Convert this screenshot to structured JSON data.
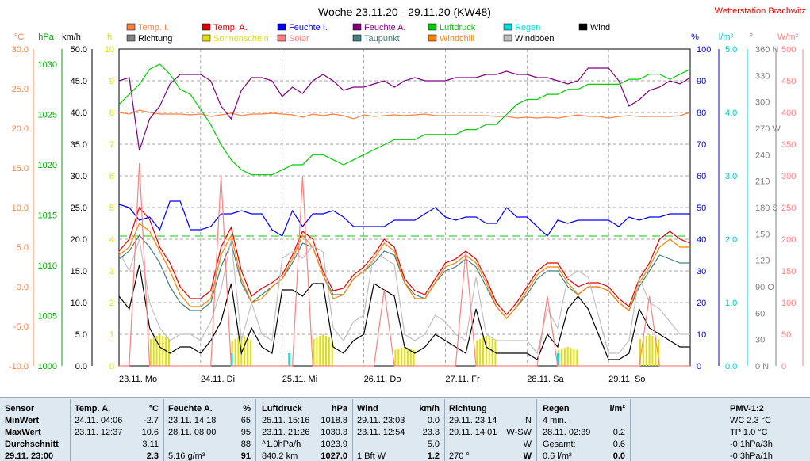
{
  "header": {
    "title": "Woche 23.11.20 - 29.11.20 (KW48)",
    "station": "Wetterstation Brachwitz"
  },
  "legend": [
    {
      "label": "Temp. I.",
      "color": "#ff8040"
    },
    {
      "label": "Temp. A.",
      "color": "#e00000"
    },
    {
      "label": "Feuchte I.",
      "color": "#0000ff"
    },
    {
      "label": "Feuchte A.",
      "color": "#800080"
    },
    {
      "label": "Luftdruck",
      "color": "#00cc00"
    },
    {
      "label": "Regen",
      "color": "#00e0e0"
    },
    {
      "label": "Wind",
      "color": "#000000"
    },
    {
      "label": "Richtung",
      "color": "#808080"
    },
    {
      "label": "Sonnenschein",
      "color": "#e0e000"
    },
    {
      "label": "Solar",
      "color": "#ff8080"
    },
    {
      "label": "Taupunkt",
      "color": "#408080"
    },
    {
      "label": "Windchill",
      "color": "#ff8000"
    },
    {
      "label": "Windböen",
      "color": "#c0c0c0"
    }
  ],
  "axes": {
    "temp": {
      "unit": "°C",
      "color": "#ff8040",
      "ticks": [
        "30.0",
        "25.0",
        "20.0",
        "15.0",
        "10.0",
        "5.0",
        "0.0",
        "-5.0",
        "-10.0"
      ]
    },
    "pressure": {
      "unit": "hPa",
      "color": "#00aa00",
      "ticks": [
        "1030",
        "1025",
        "1020",
        "1015",
        "1010",
        "1005",
        "1000"
      ]
    },
    "wind": {
      "unit": "km/h",
      "color": "#000000",
      "ticks": [
        "50.0",
        "45.0",
        "40.0",
        "35.0",
        "30.0",
        "25.0",
        "20.0",
        "15.0",
        "10.0",
        "5.0",
        "0.0"
      ]
    },
    "sun": {
      "unit": "h",
      "color": "#e0e000",
      "ticks": [
        "10",
        "9",
        "8",
        "7",
        "6",
        "5",
        "4",
        "3",
        "2",
        "1",
        "0"
      ]
    },
    "humidity": {
      "unit": "%",
      "color": "#0000ff",
      "ticks": [
        "100",
        "90",
        "80",
        "70",
        "60",
        "50",
        "40",
        "30",
        "20",
        "10",
        "0"
      ]
    },
    "rain": {
      "unit": "l/m²",
      "color": "#00cccc",
      "ticks": [
        "5.0",
        "4.0",
        "3.0",
        "2.0",
        "1.0",
        "0.0"
      ]
    },
    "direction": {
      "unit": "°",
      "color": "#808080",
      "ticks": [
        "360 N",
        "330",
        "300",
        "270 W",
        "240",
        "210",
        "180 S",
        "150",
        "120",
        "90 O",
        "60",
        "30",
        "0 N"
      ]
    },
    "solar": {
      "unit": "W/m²",
      "color": "#ff8080",
      "ticks": [
        "500",
        "450",
        "400",
        "350",
        "300",
        "250",
        "200",
        "150",
        "100",
        "50",
        "0"
      ]
    },
    "days": [
      "23.11. Mo",
      "24.11. Di",
      "25.11. Mi",
      "26.11. Do",
      "27.11. Fr",
      "28.11. Sa",
      "29.11. So"
    ]
  },
  "chart_data": {
    "type": "line",
    "title": "Woche 23.11.20 - 29.11.20 (KW48)",
    "x": [
      0,
      3,
      6,
      9,
      12,
      15,
      18,
      21,
      24,
      27,
      30,
      33,
      36,
      39,
      42,
      45,
      48,
      51,
      54,
      57,
      60,
      63,
      66,
      69,
      72,
      75,
      78,
      81,
      84,
      87,
      90,
      93,
      96,
      99,
      102,
      105,
      108,
      111,
      114,
      117,
      120,
      123,
      126,
      129,
      132,
      135,
      138,
      141,
      144,
      147,
      150,
      153,
      156,
      159,
      162,
      165,
      168
    ],
    "x_unit": "hours since 23.11. 00:00",
    "series": [
      {
        "name": "Temp. I.",
        "axis": "temp",
        "color": "#ff8040",
        "values": [
          22.0,
          21.8,
          22.3,
          22.0,
          21.8,
          21.8,
          21.8,
          21.7,
          21.8,
          21.5,
          21.7,
          21.9,
          21.6,
          21.8,
          21.8,
          21.9,
          21.8,
          21.7,
          21.4,
          21.8,
          21.6,
          21.8,
          21.6,
          21.2,
          21.7,
          21.5,
          21.6,
          21.7,
          21.6,
          21.7,
          21.8,
          21.6,
          21.6,
          21.6,
          21.6,
          21.6,
          21.6,
          21.5,
          21.5,
          21.3,
          21.4,
          21.3,
          21.4,
          21.3,
          21.5,
          21.7,
          21.5,
          21.5,
          21.3,
          21.5,
          21.6,
          21.5,
          21.5,
          21.5,
          21.5,
          21.6,
          22.0
        ]
      },
      {
        "name": "Temp. A.",
        "axis": "temp",
        "color": "#e00000",
        "values": [
          4.5,
          6.0,
          10.0,
          8.5,
          5.0,
          3.0,
          0.0,
          -1.5,
          -1.5,
          -0.5,
          5.0,
          7.5,
          2.0,
          -1.2,
          -0.2,
          0.5,
          1.5,
          4.0,
          7.0,
          6.0,
          2.0,
          -0.5,
          -0.2,
          1.5,
          2.5,
          4.0,
          6.0,
          5.0,
          1.0,
          -0.5,
          -1.0,
          1.0,
          3.0,
          3.5,
          4.5,
          3.5,
          1.0,
          -2.0,
          -3.5,
          -2.0,
          0.0,
          2.0,
          3.0,
          3.0,
          1.0,
          0.0,
          0.5,
          0.5,
          0.0,
          -1.5,
          -2.5,
          1.0,
          3.0,
          6.0,
          7.0,
          6.0,
          5.5
        ]
      },
      {
        "name": "Feuchte I.",
        "axis": "humidity",
        "color": "#0000ff",
        "values": [
          51,
          50,
          46,
          47,
          43,
          52,
          52,
          43,
          43,
          44,
          48,
          48,
          49,
          48,
          48,
          43,
          41,
          49,
          44,
          48,
          48,
          49,
          47,
          44,
          44,
          44,
          44,
          46,
          46,
          46,
          48,
          50,
          47,
          46,
          47,
          47,
          45,
          45,
          50,
          47,
          47,
          44,
          41,
          46,
          45,
          46,
          46,
          46,
          46,
          44,
          47,
          46,
          47,
          47,
          48,
          48,
          48
        ]
      },
      {
        "name": "Feuchte A.",
        "axis": "humidity",
        "color": "#800080",
        "values": [
          90,
          91,
          68,
          78,
          82,
          89,
          92,
          92,
          92,
          90,
          82,
          78,
          87,
          91,
          91,
          90,
          85,
          88,
          86,
          90,
          92,
          90,
          87,
          88,
          88,
          89,
          90,
          88,
          90,
          91,
          90,
          90,
          90,
          91,
          91,
          91,
          92,
          92,
          93,
          92,
          92,
          91,
          91,
          90,
          89,
          90,
          94,
          94,
          94,
          90,
          82,
          84,
          87,
          88,
          90,
          89,
          91
        ]
      },
      {
        "name": "Luftdruck",
        "axis": "pressure",
        "color": "#00cc00",
        "values": [
          1026.0,
          1027.0,
          1028.0,
          1029.5,
          1030.0,
          1029.0,
          1027.5,
          1027.0,
          1025.5,
          1024.0,
          1022.0,
          1020.5,
          1019.5,
          1019.0,
          1019.0,
          1019.0,
          1019.5,
          1020.0,
          1020.0,
          1021.0,
          1021.0,
          1020.5,
          1020.0,
          1020.5,
          1021.0,
          1021.5,
          1022.0,
          1022.5,
          1022.5,
          1022.5,
          1023.0,
          1023.0,
          1023.0,
          1023.0,
          1023.5,
          1023.5,
          1024.0,
          1024.0,
          1025.0,
          1026.0,
          1026.5,
          1026.5,
          1027.0,
          1027.0,
          1027.5,
          1027.5,
          1028.0,
          1028.0,
          1028.0,
          1028.0,
          1028.5,
          1028.5,
          1029.0,
          1029.0,
          1028.5,
          1029.0,
          1029.5
        ]
      },
      {
        "name": "Taupunkt",
        "axis": "temp",
        "color": "#408080",
        "values": [
          3.5,
          4.5,
          6.5,
          5.0,
          3.0,
          0.0,
          -2.0,
          -3.0,
          -3.0,
          -2.0,
          2.5,
          5.5,
          0.5,
          -2.0,
          -1.0,
          0.0,
          1.0,
          3.0,
          5.5,
          5.0,
          1.5,
          -1.0,
          -1.0,
          1.0,
          2.0,
          3.0,
          4.5,
          4.0,
          0.5,
          -1.0,
          -1.5,
          0.5,
          2.0,
          2.5,
          3.5,
          2.5,
          0.0,
          -2.5,
          -4.0,
          -2.5,
          -1.0,
          1.0,
          2.0,
          2.0,
          0.0,
          -1.0,
          0.0,
          0.0,
          -0.5,
          -2.0,
          -3.0,
          0.0,
          2.0,
          4.0,
          3.5,
          3.0,
          3.0
        ]
      },
      {
        "name": "Windchill",
        "axis": "temp",
        "color": "#ff8000",
        "values": [
          4.0,
          5.0,
          8.0,
          7.0,
          4.5,
          2.0,
          -1.0,
          -2.5,
          -2.5,
          -1.5,
          4.0,
          6.5,
          1.0,
          -2.0,
          -1.5,
          0.0,
          1.0,
          3.5,
          6.5,
          5.0,
          1.5,
          -1.5,
          -1.0,
          1.0,
          2.0,
          3.5,
          5.5,
          4.5,
          0.5,
          -1.5,
          -1.5,
          0.5,
          2.5,
          3.0,
          4.0,
          3.0,
          0.5,
          -2.5,
          -4.0,
          -2.5,
          -0.5,
          1.5,
          2.5,
          2.5,
          0.5,
          -1.0,
          0.0,
          0.0,
          -0.5,
          -2.0,
          -3.0,
          0.5,
          2.5,
          5.0,
          6.0,
          5.0,
          5.0
        ]
      },
      {
        "name": "Wind",
        "axis": "wind",
        "color": "#000000",
        "values": [
          11,
          9,
          16,
          6,
          3,
          2,
          3,
          3,
          2,
          4,
          7,
          13,
          2,
          6,
          3,
          2,
          12,
          12,
          11,
          13,
          13,
          3,
          2,
          4,
          5,
          13,
          12,
          11,
          3,
          2,
          3,
          5,
          4,
          3,
          2,
          9,
          3,
          2,
          2,
          2,
          2,
          1,
          5,
          3,
          9,
          11,
          9,
          5,
          1,
          1,
          2,
          9,
          6,
          5,
          4,
          3,
          3
        ]
      },
      {
        "name": "Windböen",
        "axis": "wind",
        "color": "#c0c0c0",
        "values": [
          18,
          15,
          20,
          10,
          6,
          4,
          5,
          5,
          4,
          7,
          12,
          20,
          4,
          10,
          5,
          4,
          17,
          18,
          17,
          19,
          18,
          6,
          4,
          7,
          8,
          18,
          17,
          16,
          5,
          4,
          5,
          8,
          7,
          5,
          4,
          14,
          5,
          4,
          4,
          4,
          4,
          2,
          9,
          6,
          14,
          15,
          14,
          8,
          2,
          2,
          4,
          14,
          10,
          9,
          7,
          5,
          5
        ]
      },
      {
        "name": "Solar",
        "axis": "solar",
        "color": "#ff8080",
        "values": [
          0,
          0,
          320,
          0,
          0,
          0,
          0,
          0,
          0,
          0,
          300,
          0,
          0,
          0,
          0,
          0,
          0,
          0,
          300,
          0,
          0,
          0,
          0,
          0,
          0,
          0,
          120,
          0,
          0,
          0,
          0,
          0,
          0,
          0,
          180,
          0,
          0,
          0,
          0,
          0,
          0,
          0,
          110,
          0,
          0,
          0,
          0,
          0,
          0,
          0,
          0,
          0,
          110,
          0,
          0,
          0,
          0
        ]
      }
    ],
    "sunshine": {
      "axis": "sun",
      "color": "#e0e000",
      "days_x": [
        12,
        36,
        60,
        84,
        108,
        132,
        156
      ],
      "hours": [
        1.0,
        0.95,
        1.0,
        0.6,
        0.95,
        0.6,
        1.0
      ]
    },
    "rain": {
      "axis": "rain",
      "color": "#00e0e0",
      "x": [
        33,
        50,
        129
      ],
      "values": [
        0.2,
        0.2,
        0.2
      ]
    },
    "reference_lines": [
      {
        "axis": "rain",
        "value": 2.05,
        "color": "#00cc00"
      }
    ]
  },
  "table": {
    "sensor": {
      "header": "Sensor",
      "rows": [
        "MinWert",
        "MaxWert",
        "Durchschnitt",
        "29.11. 23:00"
      ]
    },
    "temp": {
      "header": "Temp. A.",
      "unit": "°C",
      "rows": [
        [
          "24.11.  04:06",
          "-2.7"
        ],
        [
          "23.11.  12:37",
          "10.6"
        ],
        [
          "",
          "3.11"
        ],
        [
          "",
          "2.3"
        ]
      ]
    },
    "hum": {
      "header": "Feuchte A.",
      "unit": "%",
      "rows": [
        [
          "23.11.  14:18",
          "65"
        ],
        [
          "28.11.  08:00",
          "95"
        ],
        [
          "",
          "88"
        ],
        [
          "5.16 g/m³",
          "91"
        ]
      ]
    },
    "press": {
      "header": "Luftdruck",
      "unit": "hPa",
      "rows": [
        [
          "25.11.  15:16",
          "1018.8"
        ],
        [
          "23.11.  21:26",
          "1030.3"
        ],
        [
          "^1.0hPa/h",
          "1023.9"
        ],
        [
          "840.2 km",
          "1027.0"
        ]
      ]
    },
    "wind": {
      "header": "Wind",
      "unit": "km/h",
      "rows": [
        [
          "29.11.  23:03",
          "0.0"
        ],
        [
          "23.11.  12:54",
          "23.3"
        ],
        [
          "",
          "5.0"
        ],
        [
          "1 Bft W",
          "1.2"
        ]
      ]
    },
    "dir": {
      "header": "Richtung",
      "unit": "",
      "rows": [
        [
          "29.11.  23:14",
          "N"
        ],
        [
          "29.11.  14:01",
          "W-SW"
        ],
        [
          "",
          "W"
        ],
        [
          "270 °",
          "W"
        ]
      ]
    },
    "rain": {
      "header": "Regen",
      "unit": "l/m²",
      "rows": [
        [
          "4 min.",
          ""
        ],
        [
          "28.11.  02:39",
          "0.2"
        ],
        [
          "Gesamt:",
          "0.6"
        ],
        [
          "0.6 l/m²",
          "0.0"
        ]
      ]
    },
    "pmv": {
      "header": "PMV-1:2",
      "rows": [
        "WC 2.3 °C",
        "TP 1.0 °C",
        "-0.1hPa/3h",
        "-0.3hPa/1h"
      ]
    }
  }
}
